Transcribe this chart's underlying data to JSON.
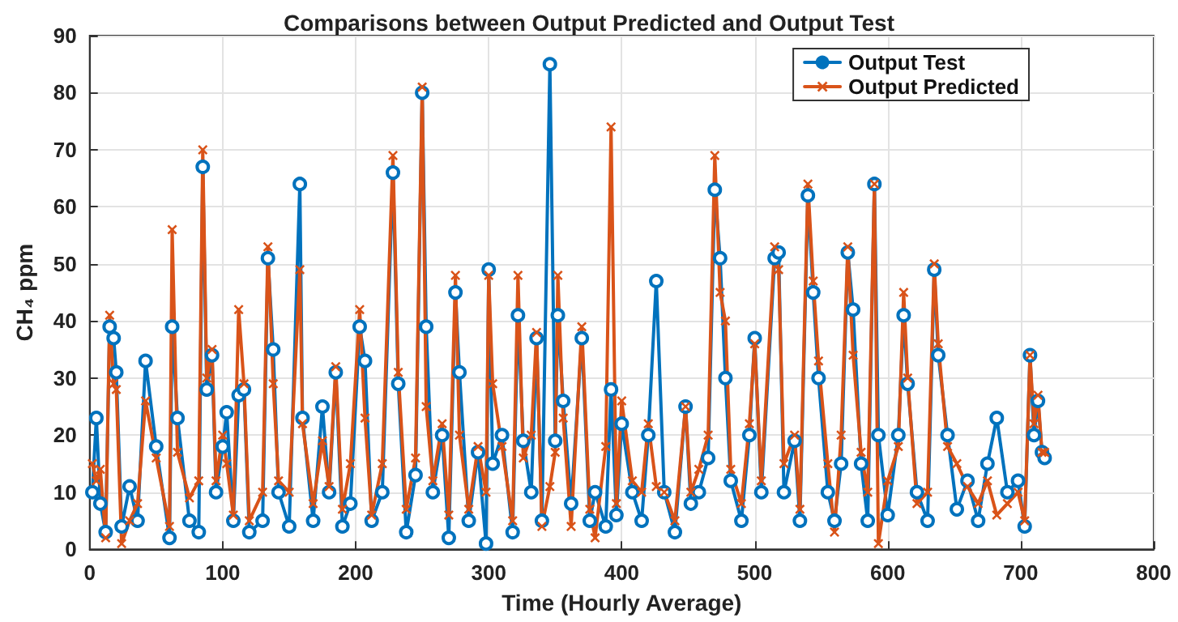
{
  "chart_data": {
    "type": "line",
    "title": "Comparisons between Output Predicted and Output Test",
    "xlabel": "Time (Hourly Average)",
    "ylabel": "CH₄ ppm",
    "x": [
      2,
      5,
      8,
      12,
      15,
      18,
      20,
      24,
      30,
      36,
      42,
      50,
      60,
      62,
      66,
      75,
      82,
      85,
      88,
      92,
      95,
      100,
      103,
      108,
      112,
      116,
      120,
      130,
      134,
      138,
      142,
      150,
      158,
      160,
      168,
      175,
      180,
      185,
      190,
      196,
      203,
      207,
      212,
      220,
      228,
      232,
      238,
      245,
      250,
      253,
      258,
      265,
      270,
      275,
      278,
      285,
      292,
      298,
      300,
      303,
      310,
      318,
      322,
      326,
      332,
      336,
      340,
      346,
      350,
      352,
      356,
      362,
      370,
      376,
      380,
      388,
      392,
      396,
      400,
      408,
      415,
      420,
      426,
      432,
      440,
      448,
      452,
      458,
      465,
      470,
      474,
      478,
      482,
      490,
      496,
      500,
      505,
      515,
      518,
      522,
      530,
      534,
      540,
      544,
      548,
      555,
      560,
      565,
      570,
      574,
      580,
      585,
      590,
      593,
      600,
      608,
      612,
      615,
      622,
      630,
      635,
      638,
      645,
      652,
      660,
      668,
      675,
      682,
      690,
      698,
      703,
      707,
      710,
      713,
      716,
      718
    ],
    "series": [
      {
        "name": "Output Test",
        "color": "#0072bd",
        "marker": "circle",
        "values": [
          10,
          23,
          8,
          3,
          39,
          37,
          31,
          4,
          11,
          5,
          33,
          18,
          2,
          39,
          23,
          5,
          3,
          67,
          28,
          34,
          10,
          18,
          24,
          5,
          27,
          28,
          3,
          5,
          51,
          35,
          10,
          4,
          64,
          23,
          5,
          25,
          10,
          31,
          4,
          8,
          39,
          33,
          5,
          10,
          66,
          29,
          3,
          13,
          80,
          39,
          10,
          20,
          2,
          45,
          31,
          5,
          17,
          1,
          49,
          15,
          20,
          3,
          41,
          19,
          10,
          37,
          5,
          85,
          19,
          41,
          26,
          8,
          37,
          5,
          10,
          4,
          28,
          6,
          22,
          10,
          5,
          20,
          47,
          10,
          3,
          25,
          8,
          10,
          16,
          63,
          51,
          30,
          12,
          5,
          20,
          37,
          10,
          51,
          52,
          10,
          19,
          5,
          62,
          45,
          30,
          10,
          5,
          15,
          52,
          42,
          15,
          5,
          64,
          20,
          6,
          20,
          41,
          29,
          10,
          5,
          49,
          34,
          20,
          7,
          12,
          5,
          15,
          23,
          10,
          12,
          4,
          34,
          20,
          26,
          17,
          16
        ]
      },
      {
        "name": "Output Predicted",
        "color": "#d95319",
        "marker": "cross",
        "values": [
          15,
          12,
          14,
          2,
          41,
          29,
          28,
          1,
          5,
          8,
          26,
          16,
          4,
          56,
          17,
          9,
          12,
          70,
          30,
          35,
          12,
          20,
          15,
          6,
          42,
          29,
          5,
          10,
          53,
          29,
          12,
          10,
          49,
          22,
          8,
          19,
          11,
          32,
          7,
          15,
          42,
          23,
          6,
          15,
          69,
          31,
          7,
          16,
          81,
          25,
          12,
          22,
          6,
          48,
          20,
          7,
          18,
          10,
          48,
          29,
          18,
          5,
          48,
          16,
          20,
          38,
          4,
          11,
          17,
          48,
          23,
          4,
          39,
          7,
          2,
          18,
          74,
          8,
          26,
          12,
          10,
          22,
          11,
          10,
          5,
          25,
          10,
          14,
          20,
          69,
          45,
          40,
          14,
          8,
          22,
          36,
          12,
          53,
          49,
          15,
          20,
          7,
          64,
          47,
          33,
          15,
          3,
          20,
          53,
          34,
          17,
          10,
          64,
          1,
          12,
          18,
          45,
          30,
          8,
          10,
          50,
          36,
          18,
          15,
          11,
          8,
          12,
          6,
          8,
          10,
          5,
          34,
          22,
          27,
          17,
          17
        ]
      }
    ],
    "xlim": [
      0,
      800
    ],
    "xticks": [
      0,
      100,
      200,
      300,
      400,
      500,
      600,
      700,
      800
    ],
    "ylim": [
      0,
      90
    ],
    "yticks": [
      0,
      10,
      20,
      30,
      40,
      50,
      60,
      70,
      80,
      90
    ],
    "grid": true,
    "legend": "top right",
    "line_style": "solid"
  }
}
